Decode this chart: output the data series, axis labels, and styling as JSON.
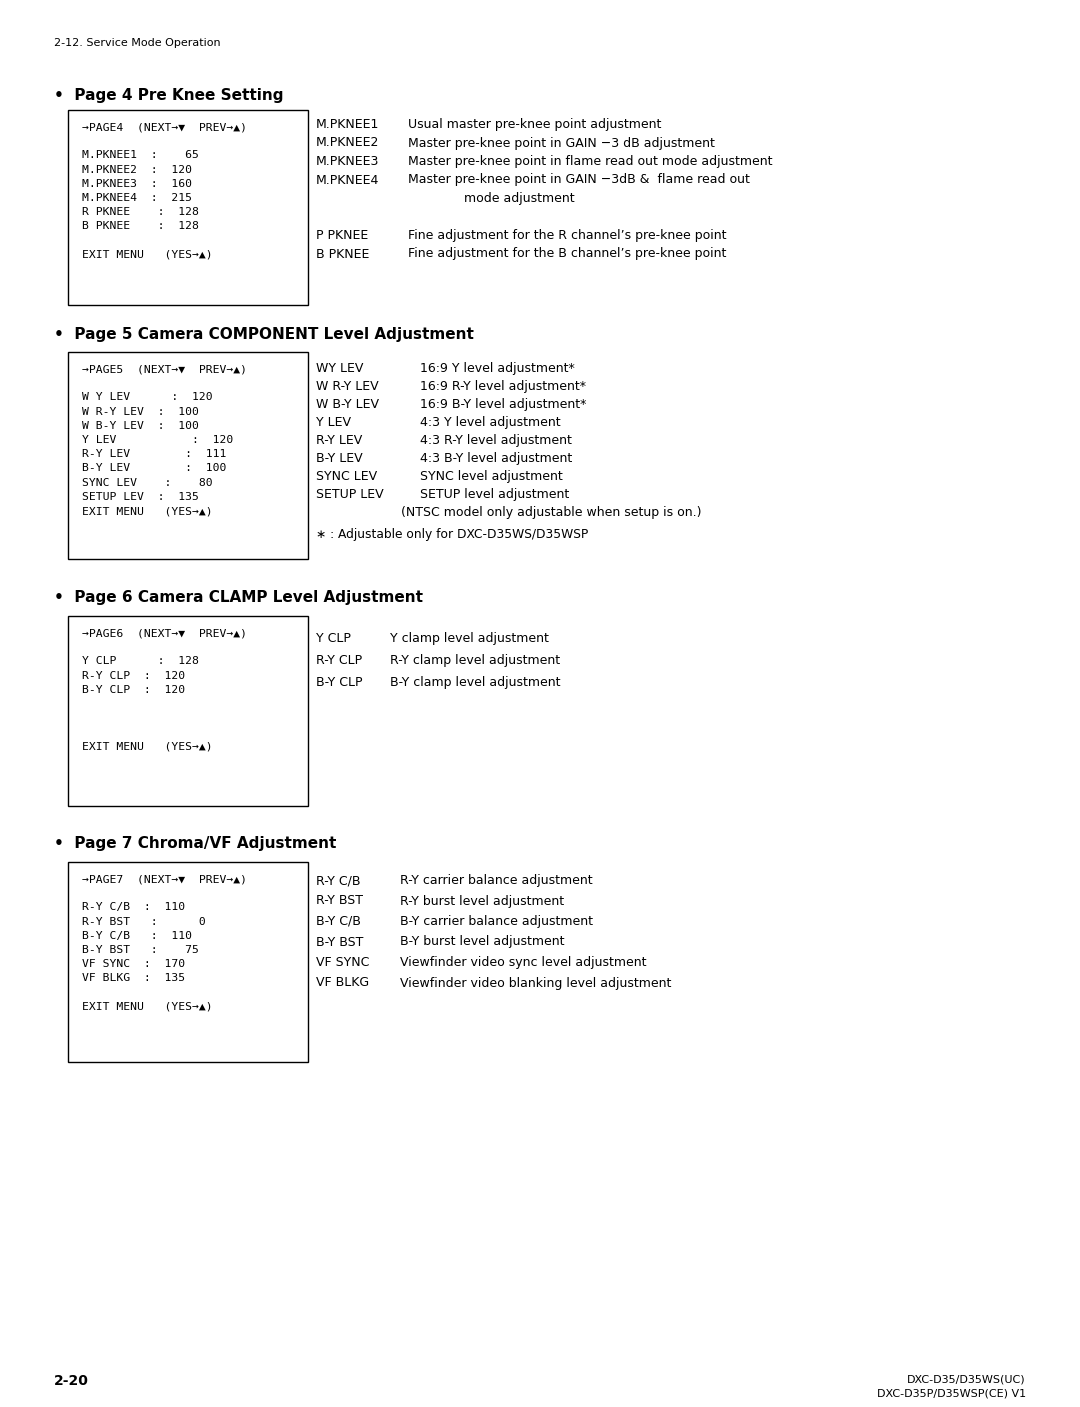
{
  "bg_color": "#ffffff",
  "page_header": "2-12. Service Mode Operation",
  "page_footer_left": "2-20",
  "page_footer_right1": "DXC-D35/D35WS(UC)",
  "page_footer_right2": "DXC-D35P/D35WSP(CE) V1",
  "section1_title": "•  Page 4 Pre Knee Setting",
  "section1_box_lines": [
    "→PAGE4  (NEXT→▼  PREV→▲)",
    "",
    "M.PKNEE1  :    65",
    "M.PKNEE2  :  120",
    "M.PKNEE3  :  160",
    "M.PKNEE4  :  215",
    "R PKNEE    :  128",
    "B PKNEE    :  128",
    "",
    "EXIT MENU   (YES→▲)"
  ],
  "section1_desc": [
    [
      "M.PKNEE1",
      "Usual master pre-knee point adjustment"
    ],
    [
      "M.PKNEE2",
      "Master pre-knee point in GAIN −3 dB adjustment"
    ],
    [
      "M.PKNEE3",
      "Master pre-knee point in flame read out mode adjustment"
    ],
    [
      "M.PKNEE4",
      "Master pre-knee point in GAIN −3dB &  flame read out"
    ],
    [
      "",
      "              mode adjustment"
    ],
    [
      "",
      ""
    ],
    [
      "P PKNEE",
      "Fine adjustment for the R channel’s pre-knee point"
    ],
    [
      "B PKNEE",
      "Fine adjustment for the B channel’s pre-knee point"
    ]
  ],
  "section2_title": "•  Page 5 Camera COMPONENT Level Adjustment",
  "section2_box_lines": [
    "→PAGE5  (NEXT→▼  PREV→▲)",
    "",
    "W Y LEV      :  120",
    "W R-Y LEV  :  100",
    "W B-Y LEV  :  100",
    "Y LEV           :  120",
    "R-Y LEV        :  111",
    "B-Y LEV        :  100",
    "SYNC LEV    :    80",
    "SETUP LEV  :  135",
    "EXIT MENU   (YES→▲)"
  ],
  "section2_desc": [
    [
      "WY LEV",
      "16:9 Y level adjustment*"
    ],
    [
      "W R-Y LEV",
      "16:9 R-Y level adjustment*"
    ],
    [
      "W B-Y LEV",
      "16:9 B-Y level adjustment*"
    ],
    [
      "Y LEV",
      "4:3 Y level adjustment"
    ],
    [
      "R-Y LEV",
      "4:3 R-Y level adjustment"
    ],
    [
      "B-Y LEV",
      "4:3 B-Y level adjustment"
    ],
    [
      "SYNC LEV",
      "SYNC level adjustment"
    ],
    [
      "SETUP LEV",
      "SETUP level adjustment"
    ],
    [
      "",
      "              (NTSC model only adjustable when setup is on.)"
    ],
    [
      "∗ : Adjustable only for DXC-D35WS/D35WSP",
      ""
    ]
  ],
  "section3_title": "•  Page 6 Camera CLAMP Level Adjustment",
  "section3_box_lines": [
    "→PAGE6  (NEXT→▼  PREV→▲)",
    "",
    "Y CLP      :  128",
    "R-Y CLP  :  120",
    "B-Y CLP  :  120",
    "",
    "",
    "",
    "EXIT MENU   (YES→▲)"
  ],
  "section3_desc": [
    [
      "Y CLP",
      "Y clamp level adjustment"
    ],
    [
      "R-Y CLP",
      "R-Y clamp level adjustment"
    ],
    [
      "B-Y CLP",
      "B-Y clamp level adjustment"
    ]
  ],
  "section4_title": "•  Page 7 Chroma/VF Adjustment",
  "section4_box_lines": [
    "→PAGE7  (NEXT→▼  PREV→▲)",
    "",
    "R-Y C/B  :  110",
    "R-Y BST   :      0",
    "B-Y C/B   :  110",
    "B-Y BST   :    75",
    "VF SYNC  :  170",
    "VF BLKG  :  135",
    "",
    "EXIT MENU   (YES→▲)"
  ],
  "section4_desc": [
    [
      "R-Y C/B",
      "R-Y carrier balance adjustment"
    ],
    [
      "R-Y BST",
      "R-Y burst level adjustment"
    ],
    [
      "B-Y C/B",
      "B-Y carrier balance adjustment"
    ],
    [
      "B-Y BST",
      "B-Y burst level adjustment"
    ],
    [
      "VF SYNC",
      "Viewfinder video sync level adjustment"
    ],
    [
      "VF BLKG",
      "Viewfinder video blanking level adjustment"
    ]
  ]
}
